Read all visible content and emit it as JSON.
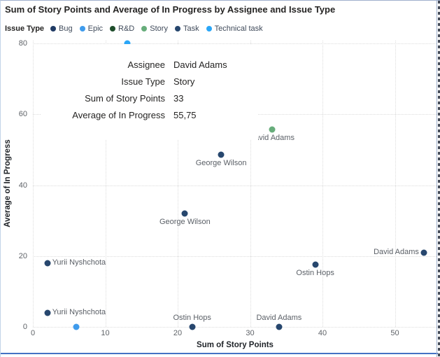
{
  "title": "Sum of Story Points and Average of In Progress by Assignee and Issue Type",
  "legend": {
    "title": "Issue Type",
    "items": [
      {
        "label": "Bug",
        "color": "#1F3A64"
      },
      {
        "label": "Epic",
        "color": "#3F9BEC"
      },
      {
        "label": "R&D",
        "color": "#1E4D2B"
      },
      {
        "label": "Story",
        "color": "#67AD7B"
      },
      {
        "label": "Task",
        "color": "#27476E"
      },
      {
        "label": "Technical task",
        "color": "#2AA6F7"
      }
    ]
  },
  "tooltip": {
    "rows": [
      {
        "label": "Assignee",
        "value": "David Adams"
      },
      {
        "label": "Issue Type",
        "value": "Story"
      },
      {
        "label": "Sum of Story Points",
        "value": "33"
      },
      {
        "label": "Average of In Progress",
        "value": "55,75"
      }
    ]
  },
  "chart_data": {
    "type": "scatter",
    "title": "Sum of Story Points and Average of In Progress by Assignee and Issue Type",
    "xlabel": "Sum of Story Points",
    "ylabel": "Average of In Progress",
    "xlim": [
      0,
      55
    ],
    "ylim": [
      0,
      80
    ],
    "x_ticks": [
      0,
      10,
      20,
      30,
      40,
      50
    ],
    "y_ticks": [
      0,
      20,
      40,
      60,
      80
    ],
    "grid": true,
    "legend_position": "top",
    "points": [
      {
        "assignee": "",
        "issue_type": "Technical task",
        "x": 13,
        "y": 80,
        "label": "",
        "label_pos": "none"
      },
      {
        "assignee": "David Adams",
        "issue_type": "Story",
        "x": 33,
        "y": 55.75,
        "label": "David Adams",
        "label_pos": "below"
      },
      {
        "assignee": "George Wilson",
        "issue_type": "Task",
        "x": 26,
        "y": 48.5,
        "label": "George Wilson",
        "label_pos": "below"
      },
      {
        "assignee": "George Wilson",
        "issue_type": "Task",
        "x": 21,
        "y": 32,
        "label": "George Wilson",
        "label_pos": "below"
      },
      {
        "assignee": "David Adams",
        "issue_type": "Task",
        "x": 54,
        "y": 21,
        "label": "David Adams",
        "label_pos": "left"
      },
      {
        "assignee": "Ostin Hops",
        "issue_type": "Task",
        "x": 39,
        "y": 17.5,
        "label": "Ostin Hops",
        "label_pos": "below"
      },
      {
        "assignee": "Yurii Nyshchota",
        "issue_type": "Task",
        "x": 2,
        "y": 18,
        "label": "Yurii Nyshchota",
        "label_pos": "right"
      },
      {
        "assignee": "Yurii Nyshchota",
        "issue_type": "Task",
        "x": 2,
        "y": 4,
        "label": "Yurii Nyshchota",
        "label_pos": "right"
      },
      {
        "assignee": "",
        "issue_type": "Epic",
        "x": 6,
        "y": 0,
        "label": "",
        "label_pos": "none"
      },
      {
        "assignee": "Ostin Hops",
        "issue_type": "Task",
        "x": 22,
        "y": 0,
        "label": "Ostin Hops",
        "label_pos": "above"
      },
      {
        "assignee": "David Adams",
        "issue_type": "Task",
        "x": 34,
        "y": 0,
        "label": "David Adams",
        "label_pos": "above"
      }
    ]
  }
}
